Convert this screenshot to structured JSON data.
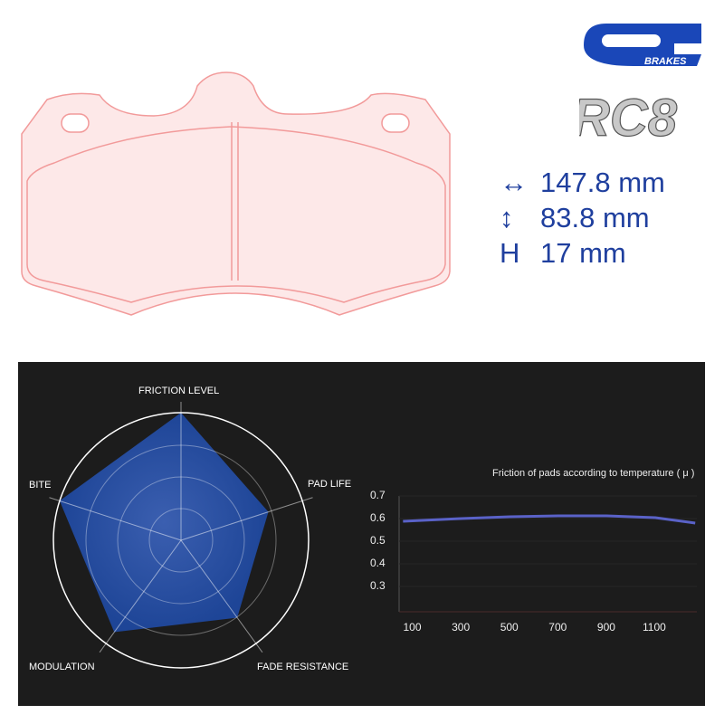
{
  "brand": {
    "logo_text": "CL",
    "logo_subtext": "BRAKES",
    "model": "RC8",
    "brand_color": "#1a47b8"
  },
  "dimensions": [
    {
      "icon": "horizontal-arrow-icon",
      "symbol": "↔",
      "value": "147.8 mm"
    },
    {
      "icon": "vertical-arrow-icon",
      "symbol": "↕",
      "value": "83.8 mm"
    },
    {
      "icon": "height-letter-icon",
      "symbol": "H",
      "value": "17 mm"
    }
  ],
  "radar": {
    "axes": [
      "FRICTION LEVEL",
      "PAD LIFE",
      "FADE RESISTANCE",
      "MODULATION",
      "BITE"
    ],
    "values": [
      1.0,
      0.72,
      0.75,
      0.89,
      1.0
    ],
    "fill_color": "#1e4597"
  },
  "chart_data": {
    "type": "line",
    "title": "Friction of pads according to temperature ( μ )",
    "x_ticks": [
      "100",
      "300",
      "500",
      "700",
      "900",
      "1100"
    ],
    "y_ticks": [
      "0.7",
      "0.6",
      "0.5",
      "0.4",
      "0.3"
    ],
    "ylim": [
      0.2,
      0.7
    ],
    "xlim": [
      60,
      1265
    ],
    "x": [
      60,
      300,
      500,
      700,
      900,
      1100,
      1265
    ],
    "y": [
      0.588,
      0.6,
      0.608,
      0.612,
      0.612,
      0.604,
      0.58
    ],
    "line_color": "#5a62c8"
  }
}
